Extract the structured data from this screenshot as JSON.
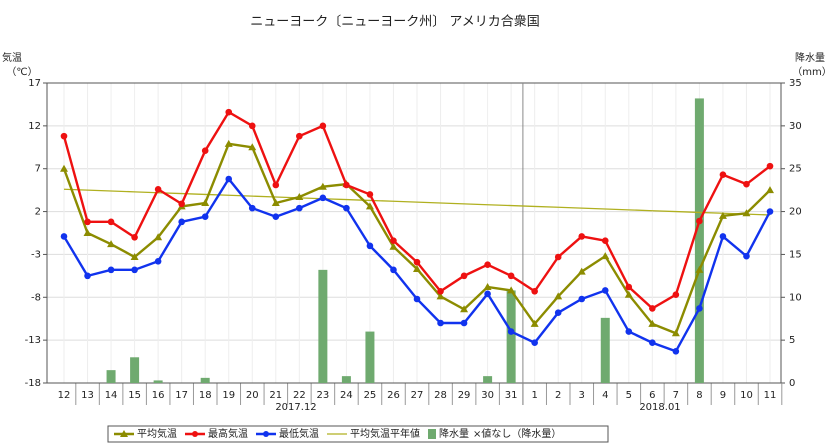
{
  "chart_data": {
    "type": "combo",
    "title": "ニューヨーク〔ニューヨーク州〕 アメリカ合衆国",
    "y_label": [
      "気温",
      "（℃）"
    ],
    "y2_label": [
      "降水量",
      "（mm）"
    ],
    "categories": [
      "12",
      "13",
      "14",
      "15",
      "16",
      "17",
      "18",
      "19",
      "20",
      "21",
      "22",
      "23",
      "24",
      "25",
      "26",
      "27",
      "28",
      "29",
      "30",
      "31",
      "1",
      "2",
      "3",
      "4",
      "5",
      "6",
      "7",
      "8",
      "9",
      "10",
      "11"
    ],
    "month_labels": [
      "2017.12",
      "2018.01"
    ],
    "legend_note": "×値なし（降水量）",
    "ylim": [
      -18,
      17
    ],
    "yticks": [
      17,
      12,
      7,
      2,
      -3,
      -8,
      -13,
      -18
    ],
    "y2lim": [
      0,
      35
    ],
    "y2ticks": [
      0,
      5,
      10,
      15,
      20,
      25,
      30,
      35
    ],
    "grid": true,
    "series": [
      {
        "name": "降水量",
        "type": "bar",
        "axis": "y2",
        "color": "#6faa6f",
        "values": [
          0,
          0,
          1.5,
          3,
          0.3,
          0,
          0.6,
          0,
          0,
          0,
          0,
          13.2,
          0.8,
          6,
          0,
          0,
          0,
          0,
          0.8,
          10.8,
          0,
          0,
          0,
          7.6,
          0,
          0,
          0,
          33.2,
          0,
          0,
          0
        ]
      },
      {
        "name": "平均気温平年値",
        "type": "line",
        "marker": "none",
        "color": "#b0b020",
        "values": [
          4.6,
          4.5,
          4.4,
          4.3,
          4.2,
          4.1,
          4.0,
          3.9,
          3.8,
          3.7,
          3.6,
          3.5,
          3.4,
          3.3,
          3.2,
          3.1,
          3.0,
          2.9,
          2.8,
          2.7,
          2.6,
          2.5,
          2.4,
          2.3,
          2.2,
          2.1,
          2.0,
          1.9,
          1.8,
          1.7,
          1.6
        ]
      },
      {
        "name": "平均気温",
        "type": "line",
        "marker": "triangle",
        "color": "#8c8c00",
        "values": [
          7,
          -0.5,
          -1.8,
          -3.3,
          -1,
          2.6,
          3,
          9.9,
          9.5,
          3,
          3.7,
          4.9,
          5.2,
          2.6,
          -2.1,
          -4.7,
          -7.9,
          -9.4,
          -6.8,
          -7.2,
          -11.1,
          -7.9,
          -5,
          -3.2,
          -7.7,
          -11.1,
          -12.2,
          -4.8,
          1.5,
          1.8,
          4.5
        ]
      },
      {
        "name": "最高気温",
        "type": "line",
        "marker": "circle",
        "color": "#ee1111",
        "values": [
          10.8,
          0.8,
          0.8,
          -1,
          4.6,
          2.9,
          9.1,
          13.6,
          12,
          5.1,
          10.8,
          12,
          5.1,
          4,
          -1.4,
          -3.9,
          -7.3,
          -5.5,
          -4.2,
          -5.5,
          -7.3,
          -3.3,
          -0.9,
          -1.4,
          -6.8,
          -9.3,
          -7.7,
          0.9,
          6.3,
          5.2,
          7.3
        ]
      },
      {
        "name": "最低気温",
        "type": "line",
        "marker": "circle",
        "color": "#1133ee",
        "values": [
          -0.9,
          -5.5,
          -4.8,
          -4.8,
          -3.8,
          0.8,
          1.4,
          5.8,
          2.4,
          1.4,
          2.4,
          3.6,
          2.4,
          -2,
          -4.8,
          -8.2,
          -11,
          -11,
          -7.6,
          -12,
          -13.3,
          -9.8,
          -8.2,
          -7.2,
          -12,
          -13.3,
          -14.3,
          -9.3,
          -0.9,
          -3.2,
          2
        ]
      }
    ]
  }
}
